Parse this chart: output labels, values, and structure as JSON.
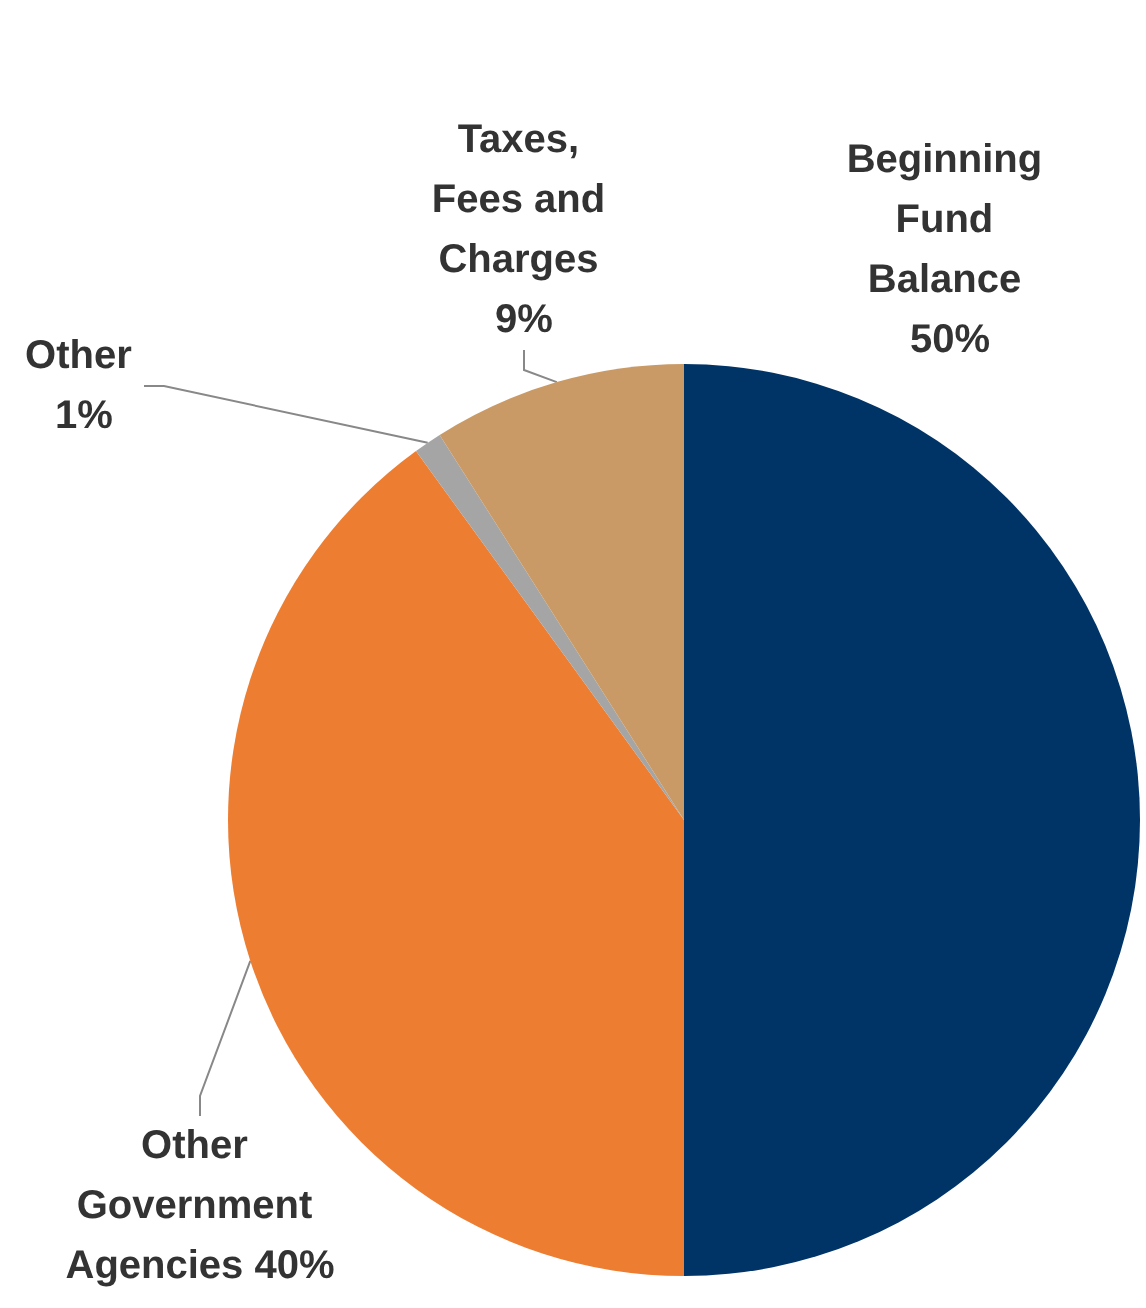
{
  "chart_data": {
    "type": "pie",
    "categories": [
      "Beginning Fund Balance",
      "Other Government Agencies",
      "Other",
      "Taxes, Fees and Charges"
    ],
    "values": [
      50,
      40,
      1,
      9
    ],
    "colors": [
      "#003366",
      "#ed7d31",
      "#a5a5a5",
      "#c99a66"
    ],
    "value_labels": [
      "50%",
      "40%",
      "1%",
      "9%"
    ],
    "legend": false
  }
}
